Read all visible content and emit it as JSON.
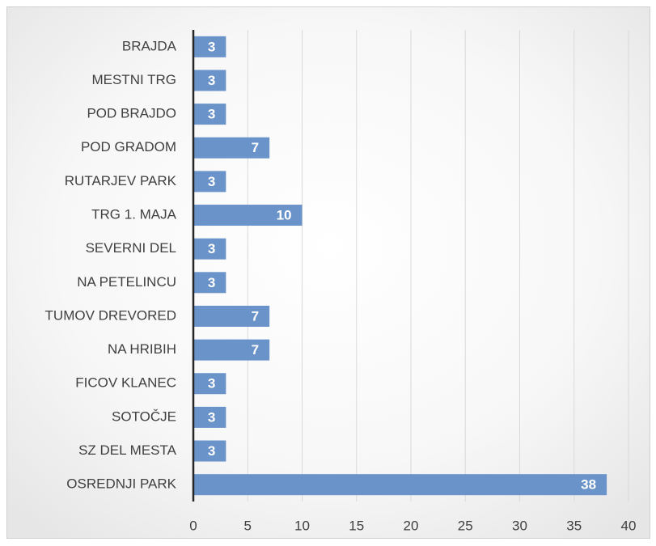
{
  "chart_data": {
    "type": "bar",
    "orientation": "horizontal",
    "categories": [
      "BRAJDA",
      "MESTNI TRG",
      "POD BRAJDO",
      "POD GRADOM",
      "RUTARJEV PARK",
      "TRG 1. MAJA",
      "SEVERNI DEL",
      "NA PETELINCU",
      "TUMOV DREVORED",
      "NA HRIBIH",
      "FICOV KLANEC",
      "SOTOČJE",
      "SZ DEL MESTA",
      "OSREDNJI PARK"
    ],
    "values": [
      3,
      3,
      3,
      7,
      3,
      10,
      3,
      3,
      7,
      7,
      3,
      3,
      3,
      38
    ],
    "color": "#6a93c9",
    "xlim": [
      0,
      40
    ],
    "xticks": [
      0,
      5,
      10,
      15,
      20,
      25,
      30,
      35,
      40
    ],
    "grid": true
  }
}
